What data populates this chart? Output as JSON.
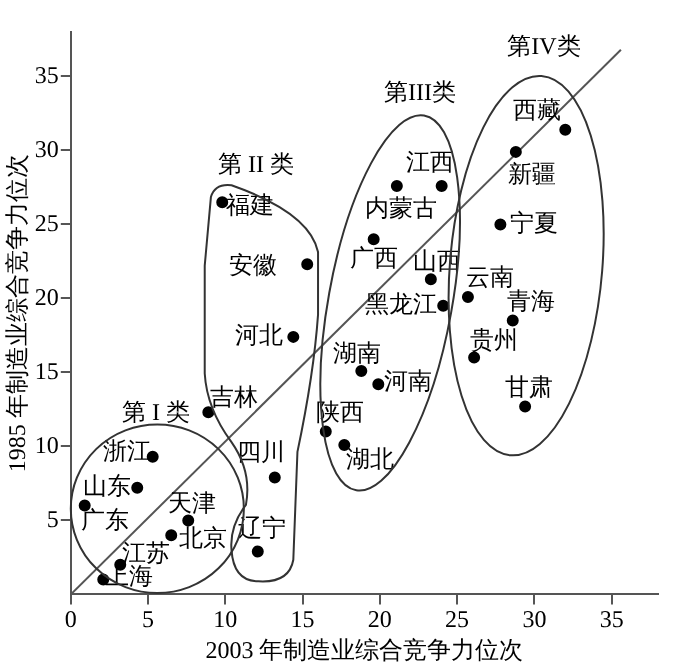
{
  "chart_data": {
    "type": "scatter",
    "xlabel": "2003 年制造业综合竞争力位次",
    "ylabel": "1985 年制造业综合竞争力位次",
    "xlim": [
      0,
      38
    ],
    "ylim": [
      0,
      38
    ],
    "xticks": [
      0,
      5,
      10,
      15,
      20,
      25,
      30,
      35
    ],
    "yticks": [
      5,
      10,
      15,
      20,
      25,
      30,
      35
    ],
    "grid": false,
    "legend": false,
    "series": [
      {
        "marker": "circle",
        "color": "#000000",
        "x": [
          9.8,
          15.3,
          14.4,
          8.9,
          5.3,
          4.3,
          0.9,
          7.6,
          6.5,
          3.2,
          2.1,
          12.1,
          13.2,
          16.5,
          17.7,
          18.8,
          19.9,
          26.1,
          29.4,
          24.0,
          21.1,
          19.6,
          23.3,
          24.1,
          25.7,
          28.6,
          28.8,
          27.8,
          32.0
        ],
        "values": [
          26.5,
          22.3,
          17.4,
          12.3,
          9.3,
          7.2,
          6.0,
          5.0,
          4.0,
          2.0,
          1.0,
          2.9,
          7.9,
          11.0,
          10.1,
          15.1,
          14.2,
          16.0,
          12.7,
          27.6,
          27.6,
          24.0,
          21.3,
          19.5,
          20.1,
          18.5,
          29.9,
          25.0,
          31.4
        ]
      },
      {
        "type": "line",
        "marker": "none",
        "color": "#555555",
        "x": [
          0,
          35.6
        ],
        "values": [
          0,
          36.8
        ]
      }
    ],
    "annotations": [
      {
        "text": "福建",
        "x": 9.8,
        "y": 26.5
      },
      {
        "text": "安徽",
        "x": 15.3,
        "y": 22.3
      },
      {
        "text": "河北",
        "x": 14.4,
        "y": 17.4
      },
      {
        "text": "吉林",
        "x": 8.9,
        "y": 12.3
      },
      {
        "text": "浙江",
        "x": 5.3,
        "y": 9.3
      },
      {
        "text": "山东",
        "x": 4.3,
        "y": 7.2
      },
      {
        "text": "广东",
        "x": 0.9,
        "y": 6.0
      },
      {
        "text": "天津",
        "x": 7.6,
        "y": 5.0
      },
      {
        "text": "北京",
        "x": 6.5,
        "y": 4.0
      },
      {
        "text": "江苏",
        "x": 3.2,
        "y": 2.0
      },
      {
        "text": "上海",
        "x": 2.1,
        "y": 1.0
      },
      {
        "text": "辽宁",
        "x": 12.1,
        "y": 2.9
      },
      {
        "text": "四川",
        "x": 13.2,
        "y": 7.9
      },
      {
        "text": "陕西",
        "x": 16.5,
        "y": 11.0
      },
      {
        "text": "湖北",
        "x": 17.7,
        "y": 10.1
      },
      {
        "text": "湖南",
        "x": 18.8,
        "y": 15.1
      },
      {
        "text": "河南",
        "x": 19.9,
        "y": 14.2
      },
      {
        "text": "贵州",
        "x": 26.1,
        "y": 16.0
      },
      {
        "text": "甘肃",
        "x": 29.4,
        "y": 12.7
      },
      {
        "text": "江西",
        "x": 24.0,
        "y": 27.6
      },
      {
        "text": "内蒙古",
        "x": 21.1,
        "y": 27.6
      },
      {
        "text": "广西",
        "x": 19.6,
        "y": 24.0
      },
      {
        "text": "山西",
        "x": 23.3,
        "y": 21.3
      },
      {
        "text": "黑龙江",
        "x": 24.1,
        "y": 19.5
      },
      {
        "text": "云南",
        "x": 25.7,
        "y": 20.1
      },
      {
        "text": "青海",
        "x": 28.6,
        "y": 18.5
      },
      {
        "text": "新疆",
        "x": 28.8,
        "y": 29.9
      },
      {
        "text": "宁夏",
        "x": 27.8,
        "y": 25.0
      },
      {
        "text": "西藏",
        "x": 32.0,
        "y": 31.4
      },
      "第 I 类",
      "第 II 类",
      "第III类",
      "第IV类"
    ]
  }
}
